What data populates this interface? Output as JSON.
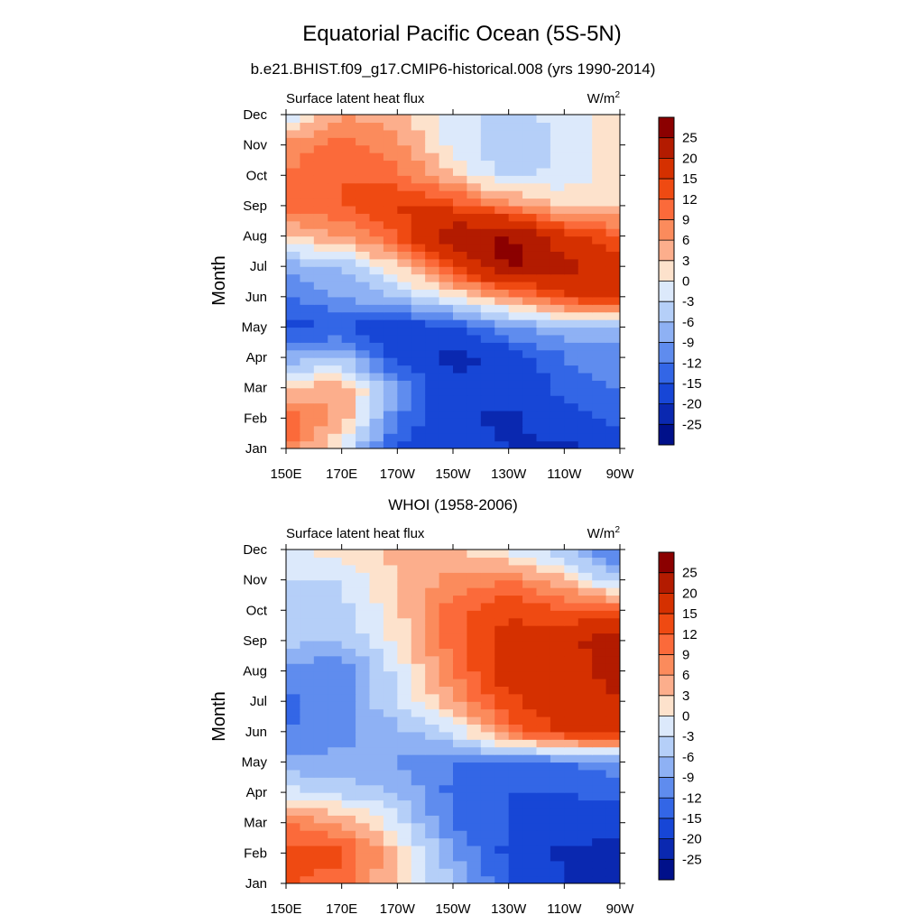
{
  "title": "Equatorial Pacific Ocean (5S-5N)",
  "colorbar": {
    "labels": [
      "25",
      "20",
      "15",
      "12",
      "9",
      "6",
      "3",
      "0",
      "-3",
      "-6",
      "-9",
      "-12",
      "-15",
      "-20",
      "-25"
    ],
    "colors": [
      "#8b0000",
      "#b31b00",
      "#d53000",
      "#ef4a12",
      "#fb6a3a",
      "#fb8b5c",
      "#fcae8c",
      "#fde2cc",
      "#dce9fb",
      "#b5cff8",
      "#8eb1f4",
      "#5f8cee",
      "#3366e6",
      "#1746d6",
      "#0a28b0",
      "#00108a"
    ]
  },
  "chart_data": [
    {
      "type": "heatmap",
      "heading": "b.e21.BHIST.f09_g17.CMIP6-historical.008 (yrs 1990-2014)",
      "left_label": "Surface latent heat flux",
      "units_base": "W/m",
      "units_exp": "2",
      "ylabel": "Month",
      "xlabel": "",
      "x": [
        "150E",
        "170E",
        "170W",
        "150W",
        "130W",
        "110W",
        "90W"
      ],
      "y": [
        "Jan",
        "Feb",
        "Mar",
        "Apr",
        "May",
        "Jun",
        "Jul",
        "Aug",
        "Sep",
        "Oct",
        "Nov",
        "Dec"
      ],
      "values": [
        [
          10,
          -2,
          -15,
          -18,
          -20,
          -21,
          -18
        ],
        [
          12,
          5,
          -12,
          -19,
          -21,
          -17,
          -14
        ],
        [
          2,
          6,
          -8,
          -19,
          -18,
          -14,
          -12
        ],
        [
          -8,
          -6,
          -17,
          -22,
          -18,
          -12,
          -10
        ],
        [
          -16,
          -15,
          -18,
          -15,
          -9,
          -7,
          -8
        ],
        [
          -12,
          -9,
          -6,
          0,
          6,
          14,
          18
        ],
        [
          -8,
          -6,
          2,
          15,
          26,
          22,
          18
        ],
        [
          3,
          6,
          12,
          24,
          26,
          16,
          12
        ],
        [
          10,
          12,
          16,
          14,
          8,
          3,
          2
        ],
        [
          9,
          12,
          10,
          3,
          -4,
          -2,
          1
        ],
        [
          8,
          10,
          7,
          -1,
          -6,
          -2,
          3
        ],
        [
          -3,
          6,
          4,
          -1,
          -4,
          -2,
          2
        ]
      ]
    },
    {
      "type": "heatmap",
      "heading": "WHOI (1958-2006)",
      "left_label": "Surface latent heat flux",
      "units_base": "W/m",
      "units_exp": "2",
      "ylabel": "Month",
      "xlabel": "",
      "x": [
        "150E",
        "170E",
        "170W",
        "150W",
        "130W",
        "110W",
        "90W"
      ],
      "y": [
        "Jan",
        "Feb",
        "Mar",
        "Apr",
        "May",
        "Jun",
        "Jul",
        "Aug",
        "Sep",
        "Oct",
        "Nov",
        "Dec"
      ],
      "values": [
        [
          12,
          10,
          2,
          -6,
          -15,
          -20,
          -24
        ],
        [
          14,
          13,
          3,
          -9,
          -16,
          -21,
          -22
        ],
        [
          9,
          6,
          -2,
          -12,
          -15,
          -18,
          -17
        ],
        [
          -2,
          -4,
          -6,
          -13,
          -15,
          -15,
          -14
        ],
        [
          -8,
          -8,
          -9,
          -12,
          -13,
          -12,
          -10
        ],
        [
          -12,
          -10,
          -7,
          -3,
          10,
          16,
          17
        ],
        [
          -13,
          -10,
          -3,
          6,
          14,
          18,
          20
        ],
        [
          -10,
          -12,
          -2,
          9,
          18,
          17,
          22
        ],
        [
          -5,
          -6,
          1,
          11,
          16,
          18,
          24
        ],
        [
          -4,
          -4,
          2,
          11,
          15,
          12,
          12
        ],
        [
          -3,
          -3,
          3,
          7,
          9,
          4,
          -6
        ],
        [
          -1,
          2,
          4,
          4,
          -1,
          -6,
          -14
        ]
      ]
    }
  ]
}
